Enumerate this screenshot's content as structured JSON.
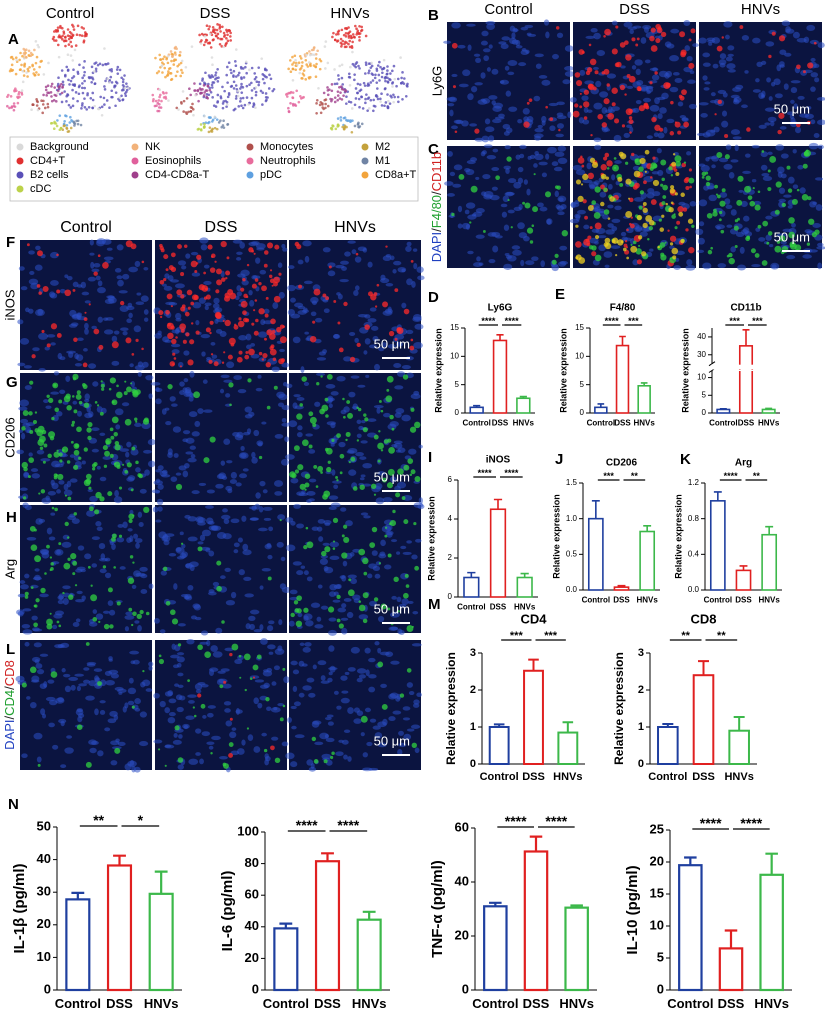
{
  "panel_labels": [
    "A",
    "B",
    "C",
    "D",
    "E",
    "F",
    "G",
    "H",
    "I",
    "J",
    "K",
    "L",
    "M",
    "N"
  ],
  "tsne": {
    "titles": [
      "Control",
      "DSS",
      "HNVs"
    ],
    "legend": [
      {
        "name": "Background",
        "color": "#d9d9d9"
      },
      {
        "name": "CD4+T",
        "color": "#e03030"
      },
      {
        "name": "B2 cells",
        "color": "#5a50b8"
      },
      {
        "name": "cDC",
        "color": "#bcd24a"
      },
      {
        "name": "NK",
        "color": "#f2b27a"
      },
      {
        "name": "Eosinophils",
        "color": "#e0609c"
      },
      {
        "name": "CD4-CD8a-T",
        "color": "#a0408c"
      },
      {
        "name": "Monocytes",
        "color": "#b0504c"
      },
      {
        "name": "Neutrophils",
        "color": "#e86c9c"
      },
      {
        "name": "pDC",
        "color": "#5ea0e0"
      },
      {
        "name": "M2",
        "color": "#c4a23c"
      },
      {
        "name": "M1",
        "color": "#7084a4"
      },
      {
        "name": "CD8a+T",
        "color": "#f2a43c"
      }
    ]
  },
  "images": {
    "top_columns": [
      "Control",
      "DSS",
      "HNVs"
    ],
    "B_row": "Ly6G",
    "C_row": [
      {
        "text": "DAPI",
        "color": "#2040c0"
      },
      {
        "text": "/",
        "color": "#222222"
      },
      {
        "text": "F4/80",
        "color": "#20a030"
      },
      {
        "text": "/",
        "color": "#222222"
      },
      {
        "text": "CD11b",
        "color": "#d02020"
      }
    ],
    "left_columns": [
      "Control",
      "DSS",
      "HNVs"
    ],
    "rows": [
      "iNOS",
      "CD206",
      "Arg"
    ],
    "L_row": [
      {
        "text": "DAPI",
        "color": "#2040c0"
      },
      {
        "text": "/",
        "color": "#222222"
      },
      {
        "text": "CD4",
        "color": "#20a030"
      },
      {
        "text": "/",
        "color": "#222222"
      },
      {
        "text": "CD8",
        "color": "#d02020"
      }
    ],
    "scale_bar": "50 μm"
  },
  "chart_data": [
    {
      "type": "bar",
      "title": "Ly6G",
      "ylabel": "Relative expression",
      "categories": [
        "Control",
        "DSS",
        "HNVs"
      ],
      "values": [
        1.0,
        12.8,
        2.6
      ],
      "errors": [
        0.3,
        1.0,
        0.3
      ],
      "colors": [
        "#1f3f9f",
        "#e02020",
        "#3cb84a"
      ],
      "ylim": [
        0,
        15
      ],
      "yticks": [
        0,
        5,
        10,
        15
      ],
      "significance": [
        "****",
        "****"
      ]
    },
    {
      "type": "bar",
      "title": "F4/80",
      "ylabel": "Relative expression",
      "categories": [
        "Control",
        "DSS",
        "HNVs"
      ],
      "values": [
        1.0,
        11.9,
        4.8
      ],
      "errors": [
        0.6,
        1.6,
        0.5
      ],
      "colors": [
        "#1f3f9f",
        "#e02020",
        "#3cb84a"
      ],
      "ylim": [
        0,
        15
      ],
      "yticks": [
        0,
        5,
        10,
        15
      ],
      "significance": [
        "****",
        "***"
      ]
    },
    {
      "type": "bar",
      "title": "CD11b",
      "ylabel": "Relative expression",
      "categories": [
        "Control",
        "DSS",
        "HNVs"
      ],
      "values": [
        1.0,
        35,
        1.0
      ],
      "errors": [
        0.2,
        9,
        0.3
      ],
      "colors": [
        "#1f3f9f",
        "#e02020",
        "#3cb84a"
      ],
      "ylim": [
        0,
        45
      ],
      "ybreak": [
        12,
        25
      ],
      "yticks": [
        0,
        5,
        10,
        30,
        40
      ],
      "significance": [
        "***",
        "***"
      ]
    },
    {
      "type": "bar",
      "title": "iNOS",
      "ylabel": "Relative expression",
      "categories": [
        "Control",
        "DSS",
        "HNVs"
      ],
      "values": [
        1.0,
        4.5,
        1.0
      ],
      "errors": [
        0.25,
        0.5,
        0.2
      ],
      "colors": [
        "#1f3f9f",
        "#e02020",
        "#3cb84a"
      ],
      "ylim": [
        0,
        6
      ],
      "yticks": [
        0,
        2,
        4,
        6
      ],
      "significance": [
        "****",
        "****"
      ]
    },
    {
      "type": "bar",
      "title": "CD206",
      "ylabel": "Relative expression",
      "categories": [
        "Control",
        "DSS",
        "HNVs"
      ],
      "values": [
        1.0,
        0.04,
        0.82
      ],
      "errors": [
        0.25,
        0.02,
        0.08
      ],
      "colors": [
        "#1f3f9f",
        "#e02020",
        "#3cb84a"
      ],
      "ylim": [
        0,
        1.5
      ],
      "yticks": [
        {
          "value": 0,
          "label": "0.0"
        },
        0.5,
        {
          "value": 1,
          "label": "1.0"
        },
        1.5
      ],
      "significance": [
        "***",
        "**"
      ]
    },
    {
      "type": "bar",
      "title": "Arg",
      "ylabel": "Relative expression",
      "categories": [
        "Control",
        "DSS",
        "HNVs"
      ],
      "values": [
        1.0,
        0.22,
        0.62
      ],
      "errors": [
        0.1,
        0.05,
        0.09
      ],
      "colors": [
        "#1f3f9f",
        "#e02020",
        "#3cb84a"
      ],
      "ylim": [
        0,
        1.2
      ],
      "yticks": [
        {
          "value": 0,
          "label": "0.0"
        },
        0.4,
        0.8,
        1.2
      ],
      "significance": [
        "****",
        "**"
      ]
    },
    {
      "type": "bar",
      "title": "CD4",
      "ylabel": "Relative expression",
      "categories": [
        "Control",
        "DSS",
        "HNVs"
      ],
      "values": [
        1.0,
        2.52,
        0.85
      ],
      "errors": [
        0.07,
        0.3,
        0.28
      ],
      "colors": [
        "#1f3f9f",
        "#e02020",
        "#3cb84a"
      ],
      "ylim": [
        0,
        3
      ],
      "yticks": [
        0,
        1,
        2,
        3
      ],
      "significance": [
        "***",
        "***"
      ]
    },
    {
      "type": "bar",
      "title": "CD8",
      "ylabel": "Relative expression",
      "categories": [
        "Control",
        "DSS",
        "HNVs"
      ],
      "values": [
        1.0,
        2.4,
        0.9
      ],
      "errors": [
        0.08,
        0.38,
        0.37
      ],
      "colors": [
        "#1f3f9f",
        "#e02020",
        "#3cb84a"
      ],
      "ylim": [
        0,
        3
      ],
      "yticks": [
        0,
        1,
        2,
        3
      ],
      "significance": [
        "**",
        "**"
      ]
    },
    {
      "type": "bar",
      "ylabel": "IL-1β (pg/ml)",
      "categories": [
        "Control",
        "DSS",
        "HNVs"
      ],
      "values": [
        27.8,
        38.2,
        29.5
      ],
      "errors": [
        2,
        3,
        6.8
      ],
      "colors": [
        "#1f3f9f",
        "#e02020",
        "#3cb84a"
      ],
      "ylim": [
        0,
        50
      ],
      "yticks": [
        0,
        10,
        20,
        30,
        40,
        50
      ],
      "significance": [
        "**",
        "*"
      ]
    },
    {
      "type": "bar",
      "ylabel": "IL-6 (pg/ml)",
      "categories": [
        "Control",
        "DSS",
        "HNVs"
      ],
      "values": [
        39,
        81.5,
        44.5
      ],
      "errors": [
        3,
        5,
        5
      ],
      "colors": [
        "#1f3f9f",
        "#e02020",
        "#3cb84a"
      ],
      "ylim": [
        0,
        100
      ],
      "yticks": [
        0,
        20,
        40,
        60,
        80,
        100
      ],
      "significance": [
        "****",
        "****"
      ]
    },
    {
      "type": "bar",
      "ylabel": "TNF-α (pg/ml)",
      "categories": [
        "Control",
        "DSS",
        "HNVs"
      ],
      "values": [
        31,
        51.3,
        30.5
      ],
      "errors": [
        1.3,
        5.5,
        0.8
      ],
      "colors": [
        "#1f3f9f",
        "#e02020",
        "#3cb84a"
      ],
      "ylim": [
        0,
        60
      ],
      "yticks": [
        0,
        20,
        40,
        60
      ],
      "significance": [
        "****",
        "****"
      ]
    },
    {
      "type": "bar",
      "ylabel": "IL-10 (pg/ml)",
      "categories": [
        "Control",
        "DSS",
        "HNVs"
      ],
      "values": [
        19.5,
        6.5,
        18
      ],
      "errors": [
        1.2,
        2.8,
        3.3
      ],
      "colors": [
        "#1f3f9f",
        "#e02020",
        "#3cb84a"
      ],
      "ylim": [
        0,
        25
      ],
      "yticks": [
        0,
        5,
        10,
        15,
        20,
        25
      ],
      "significance": [
        "****",
        "****"
      ]
    }
  ]
}
